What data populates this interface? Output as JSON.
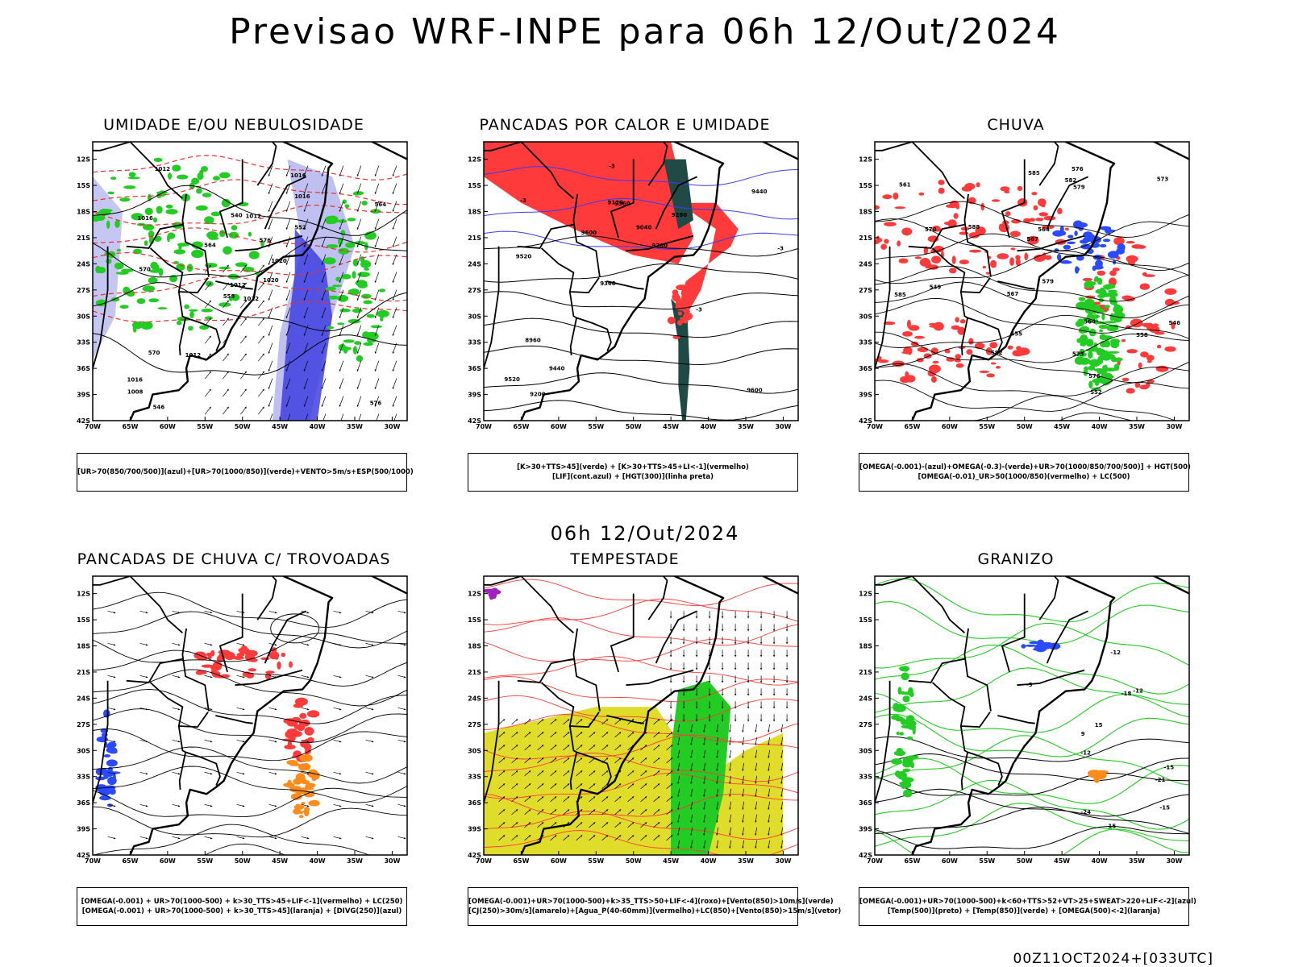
{
  "header": {
    "title": "Previsao WRF-INPE  para 06h 12/Out/2024"
  },
  "middle_title": "06h 12/Out/2024",
  "footer": "00Z11OCT2024+[033UTC]",
  "axes": {
    "lat_labels": [
      "12S",
      "15S",
      "18S",
      "21S",
      "24S",
      "27S",
      "30S",
      "33S",
      "36S",
      "39S",
      "42S"
    ],
    "lon_labels": [
      "70W",
      "65W",
      "60W",
      "55W",
      "50W",
      "45W",
      "40W",
      "35W",
      "30W"
    ]
  },
  "colors": {
    "humidity_blue": "#4040e0",
    "humidity_light": "#b8b8f0",
    "green": "#22cc22",
    "red": "#ff3a3a",
    "dark_teal": "#1f4a46",
    "orange": "#ff8c1a",
    "yellow": "#e0dc2a",
    "purple": "#a020c0"
  },
  "panels": [
    {
      "title": "UMIDADE E/OU NEBULOSIDADE",
      "legend": [
        "[UR>70(850/700/500)](azul)+[UR>70(1000/850)](verde)+VENTO>5m/s+ESP(500/1000)"
      ],
      "labels": [
        "1012",
        "1016",
        "1012",
        "1016",
        "1020",
        "1012",
        "1016",
        "1012",
        "1016",
        "1020",
        "1012",
        "576",
        "570",
        "564",
        "558",
        "552",
        "546",
        "540",
        "576",
        "570",
        "564",
        "1008"
      ]
    },
    {
      "title": "PANCADAS POR CALOR E UMIDADE",
      "legend": [
        "[K>30+TTS>45](verde) + [K>30+TTS>45+LI<-1](vermelho)",
        "[LIF](cont.azul) + [HGT(300)](linha preta)"
      ],
      "labels": [
        "9600",
        "9520",
        "9440",
        "9360",
        "9280",
        "9200",
        "9120",
        "9040",
        "8960",
        "9600",
        "9520",
        "9440",
        "9360",
        "9280",
        "-3",
        "-3",
        "-3",
        "-3"
      ]
    },
    {
      "title": "CHUVA",
      "legend": [
        "[OMEGA(-0.001)-(azul)+OMEGA(-0.3)-(verde)+UR>70(1000/850/700/500)] + HGT(500)",
        "[OMEGA(-0.01)_UR>50(1000/850)(vermelho) + LC(500)"
      ],
      "labels": [
        "588",
        "585",
        "582",
        "579",
        "576",
        "573",
        "570",
        "567",
        "564",
        "561",
        "558",
        "555",
        "552",
        "549",
        "546",
        "585",
        "582",
        "579",
        "576",
        "573",
        "567",
        "564"
      ]
    },
    {
      "title": "PANCADAS DE CHUVA C/ TROVOADAS",
      "legend": [
        "[OMEGA(-0.001) + UR>70(1000-500) + k>30_TTS>45+LIF<-1](vermelho) + LC(250)",
        "[OMEGA(-0.001) + UR>70(1000-500) + k>30_TTS>45](laranja) + [DIVG(250)](azul)"
      ],
      "labels": []
    },
    {
      "title": "TEMPESTADE",
      "legend": [
        "[OMEGA(-0.001)+UR>70(1000-500)+k>35_TTS>50+LIF<-4](roxo)+[Vento(850)>10m/s](verde)",
        "[CJ(250)>30m/s](amarelo)+[Agua_P(40-60mm)](vermelho)+LC(850)+[Vento(850)>15m/s](vetor)"
      ],
      "labels": []
    },
    {
      "title": "GRANIZO",
      "legend": [
        "[OMEGA(-0.001)+UR>70(1000-500)+k<60+TTS>52+VT>25+SWEAT>220+LIF<-2](azul)",
        "[Temp(500)](preto) + [Temp(850)](verde) + [OMEGA(500)<-2](laranja)"
      ],
      "labels": [
        "-12",
        "-15",
        "-18",
        "-21",
        "-24",
        "-12",
        "-12",
        "-9",
        "-15",
        "15",
        "15",
        "9"
      ]
    }
  ]
}
